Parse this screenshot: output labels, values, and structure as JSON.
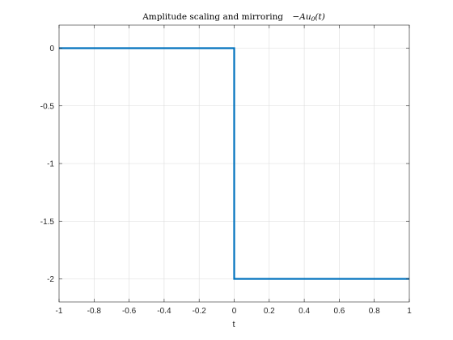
{
  "chart_data": {
    "type": "line",
    "title": {
      "text": "Amplitude scaling and mirroring",
      "math_prefix": "−Au",
      "math_subscript": "0",
      "math_suffix": "(t)"
    },
    "xlabel": "t",
    "ylabel": "",
    "xlim": [
      -1,
      1
    ],
    "ylim": [
      -2.2,
      0.2
    ],
    "x_ticks": [
      -1,
      -0.8,
      -0.6,
      -0.4,
      -0.2,
      0,
      0.2,
      0.4,
      0.6,
      0.8,
      1
    ],
    "x_tick_labels": [
      "-1",
      "-0.8",
      "-0.6",
      "-0.4",
      "-0.2",
      "0",
      "0.2",
      "0.4",
      "0.6",
      "0.8",
      "1"
    ],
    "y_ticks": [
      0,
      -0.5,
      -1,
      -1.5,
      -2
    ],
    "y_tick_labels": [
      "0",
      "-0.5",
      "-1",
      "-1.5",
      "-2"
    ],
    "grid": true,
    "series": [
      {
        "color": "#0072bd",
        "x": [
          -1,
          0,
          0,
          1
        ],
        "y": [
          0,
          0,
          -2,
          -2
        ]
      }
    ]
  }
}
